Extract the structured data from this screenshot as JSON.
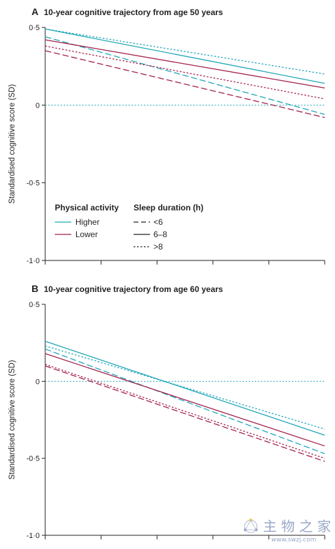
{
  "chart_data": [
    {
      "type": "line",
      "panel": "A",
      "title": "10-year cognitive trajectory from age 50 years",
      "xlabel": "",
      "ylabel": "Standardised cognitive score (SD)",
      "ylim": [
        -1.0,
        0.5
      ],
      "yticks": [
        -1.0,
        -0.5,
        0,
        0.5
      ],
      "ytick_labels": [
        "-1·0",
        "-0·5",
        "0",
        "0·5"
      ],
      "x": [
        0,
        10
      ],
      "xtick_count": 6,
      "reference_line": 0,
      "series": [
        {
          "name": "Higher, <6",
          "activity": "Higher",
          "sleep": "<6",
          "color": "#1fa6b8",
          "dash": "dashed",
          "values": [
            0.44,
            -0.06
          ]
        },
        {
          "name": "Higher, 6–8",
          "activity": "Higher",
          "sleep": "6–8",
          "color": "#1fa6b8",
          "dash": "solid",
          "values": [
            0.49,
            0.14
          ]
        },
        {
          "name": "Higher, >8",
          "activity": "Higher",
          "sleep": ">8",
          "color": "#1fa6b8",
          "dash": "dotted",
          "values": [
            0.49,
            0.2
          ]
        },
        {
          "name": "Lower, <6",
          "activity": "Lower",
          "sleep": "<6",
          "color": "#a31f4a",
          "dash": "dashed",
          "values": [
            0.35,
            -0.08
          ]
        },
        {
          "name": "Lower, 6–8",
          "activity": "Lower",
          "sleep": "6–8",
          "color": "#a31f4a",
          "dash": "solid",
          "values": [
            0.42,
            0.11
          ]
        },
        {
          "name": "Lower, >8",
          "activity": "Lower",
          "sleep": ">8",
          "color": "#a31f4a",
          "dash": "dotted",
          "values": [
            0.38,
            0.04
          ]
        }
      ],
      "legend": {
        "placement": "bottom-left",
        "activity_title": "Physical activity",
        "sleep_title": "Sleep duration (h)",
        "activity_items": [
          {
            "label": "Higher",
            "color": "#1fa6b8"
          },
          {
            "label": "Lower",
            "color": "#a31f4a"
          }
        ],
        "sleep_items": [
          {
            "label": "<6",
            "dash": "dashed"
          },
          {
            "label": "6–8",
            "dash": "solid"
          },
          {
            "label": ">8",
            "dash": "dotted"
          }
        ]
      }
    },
    {
      "type": "line",
      "panel": "B",
      "title": "10-year cognitive trajectory from age 60 years",
      "xlabel": "",
      "ylabel": "Standardised cognitive score (SD)",
      "ylim": [
        -1.0,
        0.5
      ],
      "yticks": [
        -1.0,
        -0.5,
        0,
        0.5
      ],
      "ytick_labels": [
        "-1·0",
        "-0·5",
        "0",
        "0·5"
      ],
      "x": [
        0,
        10
      ],
      "xtick_count": 6,
      "reference_line": 0,
      "series": [
        {
          "name": "Higher, <6",
          "activity": "Higher",
          "sleep": "<6",
          "color": "#1fa6b8",
          "dash": "dashed",
          "values": [
            0.21,
            -0.47
          ]
        },
        {
          "name": "Higher, 6–8",
          "activity": "Higher",
          "sleep": "6–8",
          "color": "#1fa6b8",
          "dash": "solid",
          "values": [
            0.26,
            -0.35
          ]
        },
        {
          "name": "Higher, >8",
          "activity": "Higher",
          "sleep": ">8",
          "color": "#1fa6b8",
          "dash": "dotted",
          "values": [
            0.23,
            -0.31
          ]
        },
        {
          "name": "Lower, <6",
          "activity": "Lower",
          "sleep": "<6",
          "color": "#a31f4a",
          "dash": "dashed",
          "values": [
            0.1,
            -0.52
          ]
        },
        {
          "name": "Lower, 6–8",
          "activity": "Lower",
          "sleep": "6–8",
          "color": "#a31f4a",
          "dash": "solid",
          "values": [
            0.18,
            -0.42
          ]
        },
        {
          "name": "Lower, >8",
          "activity": "Lower",
          "sleep": ">8",
          "color": "#a31f4a",
          "dash": "dotted",
          "values": [
            0.11,
            -0.5
          ]
        }
      ]
    }
  ],
  "watermark": {
    "text": "主 物 之 家",
    "url": "www.swzj.com"
  }
}
